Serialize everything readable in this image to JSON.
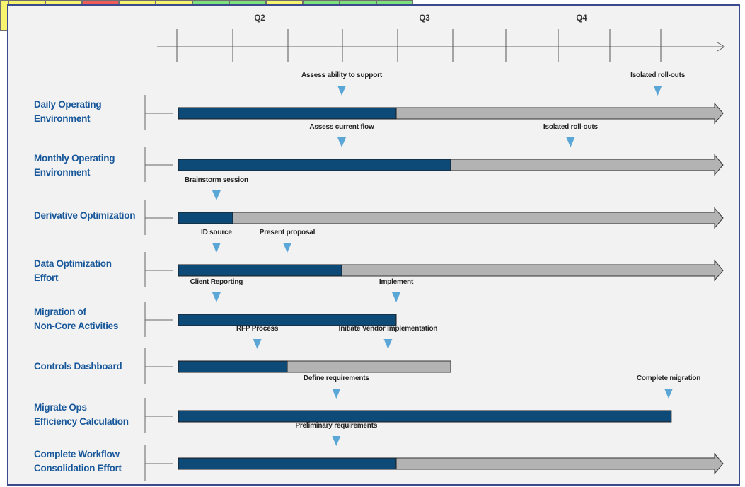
{
  "colors": {
    "timeline_done": "#0d4a78",
    "timeline_remaining": "#b3b3b3",
    "marker": "#5aa6d6",
    "label": "#17579a",
    "panel_bg": "#f2f2f2",
    "panel_border": "#3b4a8c",
    "status_yellow": "#f7f36e",
    "status_red": "#ef5a5a",
    "status_green": "#7de07a"
  },
  "status_strip": {
    "row1": [
      "yellow",
      "yellow",
      "red",
      "yellow",
      "yellow",
      "green",
      "green",
      "yellow",
      "green",
      "green",
      "green"
    ]
  },
  "quarters": [
    "Q2",
    "Q3",
    "Q4"
  ],
  "rows": [
    {
      "label": "Daily Operating\nEnvironment",
      "progress": 0.4,
      "end": 1.0,
      "arrow": true,
      "milestones": [
        {
          "label": "Assess ability to support",
          "at": 0.3
        },
        {
          "label": "Isolated roll-outs",
          "at": 0.88
        }
      ]
    },
    {
      "label": "Monthly Operating\nEnvironment",
      "progress": 0.5,
      "end": 1.0,
      "arrow": true,
      "milestones": [
        {
          "label": "Assess current flow",
          "at": 0.3
        },
        {
          "label": "Isolated roll-outs",
          "at": 0.72
        }
      ]
    },
    {
      "label": "Derivative Optimization",
      "progress": 0.1,
      "end": 1.0,
      "arrow": true,
      "milestones": [
        {
          "label": "Brainstorm session",
          "at": 0.07
        }
      ]
    },
    {
      "label": "Data Optimization\nEffort",
      "progress": 0.3,
      "end": 1.0,
      "arrow": true,
      "milestones": [
        {
          "label": "ID source",
          "at": 0.07
        },
        {
          "label": "Present proposal",
          "at": 0.2
        }
      ]
    },
    {
      "label": "Migration of\nNon-Core Activities",
      "progress": 0.4,
      "end": 0.4,
      "arrow": false,
      "milestones": [
        {
          "label": "Client Reporting",
          "at": 0.07
        },
        {
          "label": "Implement",
          "at": 0.4
        }
      ]
    },
    {
      "label": "Controls Dashboard",
      "progress": 0.2,
      "end": 0.5,
      "arrow": false,
      "milestones": [
        {
          "label": "RFP Process",
          "at": 0.145
        },
        {
          "label": "Initiate Vendor Implementation",
          "at": 0.385
        }
      ]
    },
    {
      "label": "Migrate Ops\nEfficiency Calculation",
      "progress": 0.905,
      "end": 0.905,
      "arrow": false,
      "milestones": [
        {
          "label": "Define requirements",
          "at": 0.29
        },
        {
          "label": "Complete migration",
          "at": 0.9
        }
      ]
    },
    {
      "label": "Complete Workflow\nConsolidation Effort",
      "progress": 0.4,
      "end": 1.0,
      "arrow": true,
      "milestones": [
        {
          "label": "Preliminary requirements",
          "at": 0.29
        }
      ]
    }
  ]
}
